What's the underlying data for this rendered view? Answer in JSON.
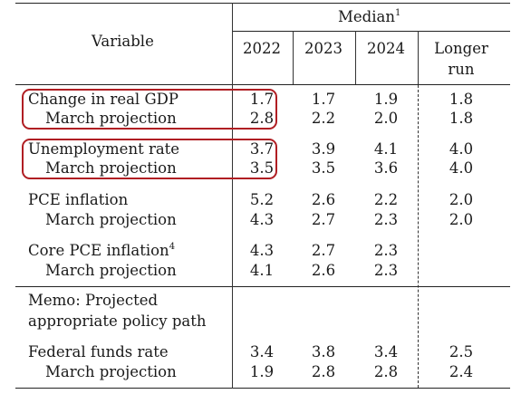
{
  "header": {
    "variable_label": "Variable",
    "median_label": "Median",
    "median_sup": "1",
    "years": [
      "2022",
      "2023",
      "2024"
    ],
    "longer_run_line1": "Longer",
    "longer_run_line2": "run"
  },
  "rows": {
    "gdp": {
      "label": "Change in real GDP",
      "values": [
        "1.7",
        "1.7",
        "1.9",
        "1.8"
      ]
    },
    "gdp_march": {
      "label": "March projection",
      "values": [
        "2.8",
        "2.2",
        "2.0",
        "1.8"
      ]
    },
    "unemp": {
      "label": "Unemployment rate",
      "values": [
        "3.7",
        "3.9",
        "4.1",
        "4.0"
      ]
    },
    "unemp_march": {
      "label": "March projection",
      "values": [
        "3.5",
        "3.5",
        "3.6",
        "4.0"
      ]
    },
    "pce": {
      "label": "PCE inflation",
      "values": [
        "5.2",
        "2.6",
        "2.2",
        "2.0"
      ]
    },
    "pce_march": {
      "label": "March projection",
      "values": [
        "4.3",
        "2.7",
        "2.3",
        "2.0"
      ]
    },
    "core": {
      "label": "Core PCE inflation",
      "sup": "4",
      "values": [
        "4.3",
        "2.7",
        "2.3"
      ]
    },
    "core_march": {
      "label": "March projection",
      "values": [
        "4.1",
        "2.6",
        "2.3"
      ]
    },
    "memo": {
      "line1": "Memo: Projected",
      "line2": "appropriate policy path"
    },
    "ffr": {
      "label": "Federal funds rate",
      "values": [
        "3.4",
        "3.8",
        "3.4",
        "2.5"
      ]
    },
    "ffr_march": {
      "label": "March projection",
      "values": [
        "1.9",
        "2.8",
        "2.8",
        "2.4"
      ]
    }
  },
  "highlight_color": "#b01e23"
}
